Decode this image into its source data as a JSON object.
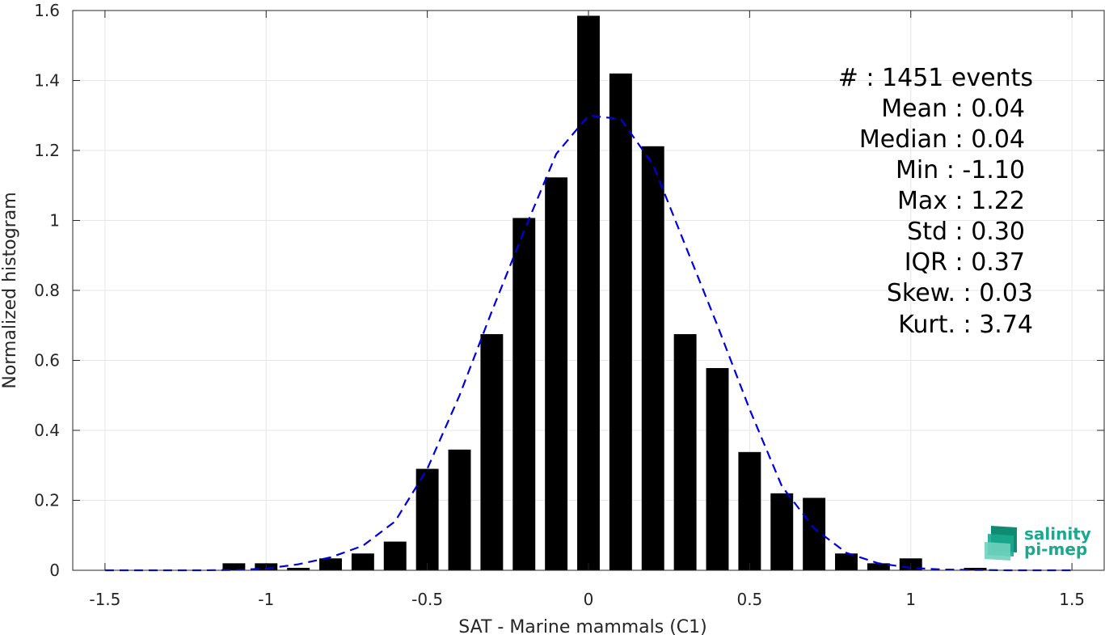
{
  "chart_data": {
    "type": "bar",
    "xlabel": "SAT - Marine mammals (C1)",
    "ylabel": "Normalized histogram",
    "xlim": [
      -1.6,
      1.6
    ],
    "ylim": [
      0,
      1.6
    ],
    "xticks": [
      -1.5,
      -1,
      -0.5,
      0,
      0.5,
      1,
      1.5
    ],
    "xtick_labels": [
      "-1.5",
      "-1",
      "-0.5",
      "0",
      "0.5",
      "1",
      "1.5"
    ],
    "yticks": [
      0,
      0.2,
      0.4,
      0.6,
      0.8,
      1,
      1.2,
      1.4,
      1.6
    ],
    "ytick_labels": [
      "0",
      "0.2",
      "0.4",
      "0.6",
      "0.8",
      "1",
      "1.2",
      "1.4",
      "1.6"
    ],
    "grid": true,
    "bar_color": "#000000",
    "bin_width": 0.1,
    "bars": [
      {
        "x": -1.1,
        "y": 0.02
      },
      {
        "x": -1.0,
        "y": 0.02
      },
      {
        "x": -0.9,
        "y": 0.007
      },
      {
        "x": -0.8,
        "y": 0.034
      },
      {
        "x": -0.7,
        "y": 0.048
      },
      {
        "x": -0.6,
        "y": 0.082
      },
      {
        "x": -0.5,
        "y": 0.29
      },
      {
        "x": -0.4,
        "y": 0.345
      },
      {
        "x": -0.3,
        "y": 0.675
      },
      {
        "x": -0.2,
        "y": 1.007
      },
      {
        "x": -0.1,
        "y": 1.123
      },
      {
        "x": 0.0,
        "y": 1.585
      },
      {
        "x": 0.1,
        "y": 1.42
      },
      {
        "x": 0.2,
        "y": 1.212
      },
      {
        "x": 0.3,
        "y": 0.675
      },
      {
        "x": 0.4,
        "y": 0.578
      },
      {
        "x": 0.5,
        "y": 0.338
      },
      {
        "x": 0.6,
        "y": 0.22
      },
      {
        "x": 0.7,
        "y": 0.207
      },
      {
        "x": 0.8,
        "y": 0.048
      },
      {
        "x": 0.9,
        "y": 0.02
      },
      {
        "x": 1.0,
        "y": 0.034
      },
      {
        "x": 1.2,
        "y": 0.007
      }
    ],
    "fit_curve": {
      "style": "dashed",
      "color": "#0000dd",
      "x": [
        -1.5,
        -1.4,
        -1.3,
        -1.2,
        -1.1,
        -1.0,
        -0.9,
        -0.8,
        -0.7,
        -0.6,
        -0.5,
        -0.4,
        -0.3,
        -0.2,
        -0.1,
        0.0,
        0.1,
        0.2,
        0.3,
        0.4,
        0.5,
        0.6,
        0.7,
        0.8,
        0.9,
        1.0,
        1.1,
        1.2,
        1.3,
        1.4,
        1.5
      ],
      "y": [
        0.0,
        0.0,
        0.0,
        0.0,
        0.001,
        0.005,
        0.017,
        0.037,
        0.07,
        0.14,
        0.29,
        0.5,
        0.74,
        0.97,
        1.19,
        1.3,
        1.29,
        1.16,
        0.93,
        0.7,
        0.46,
        0.24,
        0.12,
        0.05,
        0.02,
        0.007,
        0.002,
        0.001,
        0.0,
        0.0,
        0.0
      ]
    },
    "stats": [
      "#  : 1451 events",
      "Mean : 0.04",
      "Median : 0.04",
      "Min : -1.10",
      "Max : 1.22",
      "Std : 0.30",
      "IQR : 0.37",
      "Skew. : 0.03",
      "Kurt. : 3.74"
    ]
  },
  "logo": {
    "line1": "salinity",
    "line2": "pi-mep",
    "color": "#1aa88e"
  }
}
